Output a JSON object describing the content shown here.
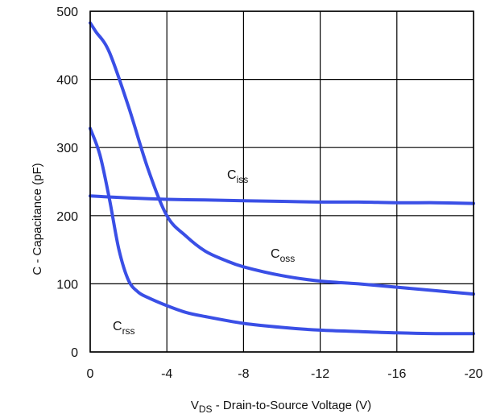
{
  "chart_data": {
    "type": "line",
    "title": "",
    "xlabel": {
      "main": "V",
      "sub": "DS",
      "rest": " - Drain-to-Source Voltage (V)"
    },
    "ylabel": "C - Capacitance (pF)",
    "xlim": [
      0,
      -20
    ],
    "ylim": [
      0,
      500
    ],
    "x_ticks": [
      0,
      -4,
      -8,
      -12,
      -16,
      -20
    ],
    "x_tick_labels": [
      "0",
      "-4",
      "-8",
      "-12",
      "-16",
      "-20"
    ],
    "y_ticks": [
      0,
      100,
      200,
      300,
      400,
      500
    ],
    "y_tick_labels": [
      "0",
      "100",
      "200",
      "300",
      "400",
      "500"
    ],
    "grid": true,
    "line_color": "#3a4fe6",
    "series": [
      {
        "name": "Ciss",
        "label_main": "C",
        "label_sub": "iss",
        "x": [
          0,
          -2,
          -4,
          -6,
          -8,
          -10,
          -12,
          -14,
          -16,
          -18,
          -20
        ],
        "y": [
          229,
          226,
          224,
          223,
          222,
          221,
          220,
          220,
          219,
          219,
          218
        ]
      },
      {
        "name": "Coss",
        "label_main": "C",
        "label_sub": "oss",
        "x": [
          0,
          -0.3,
          -1,
          -2,
          -3,
          -4,
          -5,
          -6,
          -7,
          -8,
          -10,
          -12,
          -14,
          -16,
          -18,
          -20
        ],
        "y": [
          483,
          470,
          440,
          360,
          270,
          200,
          170,
          148,
          135,
          125,
          112,
          104,
          100,
          95,
          90,
          85
        ]
      },
      {
        "name": "Crss",
        "label_main": "C",
        "label_sub": "rss",
        "x": [
          0,
          -0.5,
          -1,
          -1.5,
          -2,
          -2.5,
          -3,
          -4,
          -5,
          -6,
          -8,
          -10,
          -12,
          -14,
          -16,
          -18,
          -20
        ],
        "y": [
          328,
          290,
          225,
          150,
          105,
          88,
          80,
          68,
          58,
          52,
          42,
          36,
          32,
          30,
          28,
          27,
          27
        ]
      }
    ]
  }
}
